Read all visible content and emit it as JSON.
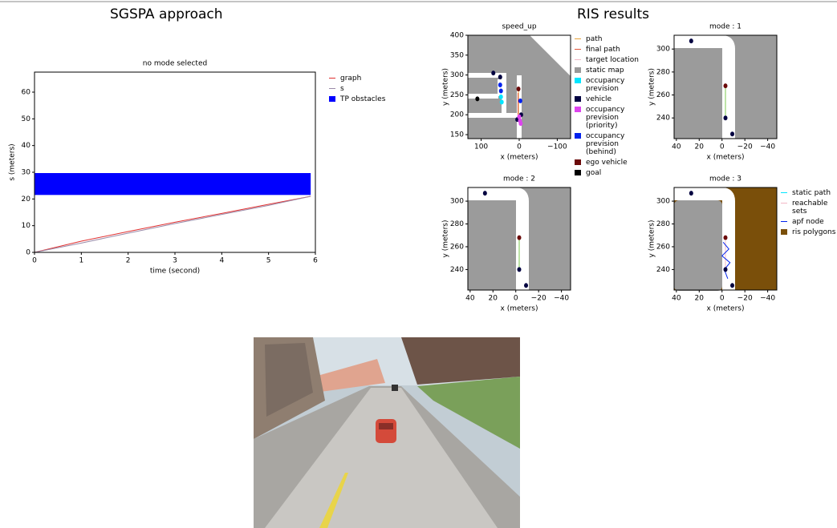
{
  "headings": {
    "left": "SGSPA approach",
    "right": "RIS results"
  },
  "chart_data": [
    {
      "type": "line",
      "title": "no mode selected",
      "xlabel": "time (second)",
      "ylabel": "s (meters)",
      "xlim": [
        0,
        6
      ],
      "ylim": [
        0,
        67.5
      ],
      "xticks": [
        0,
        1,
        2,
        3,
        4,
        5,
        6
      ],
      "yticks": [
        0,
        10,
        20,
        30,
        40,
        50,
        60
      ],
      "background": "#ffffff",
      "series": [
        {
          "name": "graph",
          "color": "#e03030",
          "marker": "line",
          "x": [
            0,
            1,
            2,
            3,
            4,
            5,
            5.9
          ],
          "values": [
            0,
            4.2,
            7.8,
            11.3,
            14.6,
            18,
            21
          ]
        },
        {
          "name": "s",
          "color": "#9a8aa8",
          "marker": "line",
          "x": [
            0,
            1,
            2,
            3,
            4,
            5,
            5.9
          ],
          "values": [
            0,
            3.5,
            7.2,
            10.8,
            14.2,
            17.6,
            21
          ]
        },
        {
          "name": "TP obstacles",
          "color": "#0000ff",
          "marker": "band",
          "x": [
            0,
            5.9
          ],
          "values": [
            21.5,
            29.7
          ]
        }
      ]
    },
    {
      "type": "map",
      "title": "speed_up",
      "xlabel": "x (meters)",
      "ylabel": "y (meters)",
      "xlim": [
        135,
        -135
      ],
      "ylim": [
        140,
        400
      ],
      "xticks": [
        100,
        0,
        {
          "value": -100,
          "label": "−100"
        }
      ],
      "yticks": [
        150,
        200,
        250,
        300,
        350,
        400
      ],
      "background": "#9b9b9b",
      "series": [
        {
          "name": "path",
          "color": "#e8a33a",
          "marker": "line",
          "x": [
            2,
            2
          ],
          "values": [
            190,
            262
          ]
        },
        {
          "name": "final path",
          "color": "#e0553a",
          "marker": "line",
          "x": [
            3,
            3
          ],
          "values": [
            200,
            255
          ]
        },
        {
          "name": "target location",
          "color": "#f2b8c6",
          "marker": "line",
          "x": [
            0
          ],
          "values": [
            265
          ]
        },
        {
          "name": "static map",
          "color": "#999999",
          "marker": "square",
          "x": [],
          "values": []
        },
        {
          "name": "occupancy\n prevision",
          "color": "#00e5ff",
          "marker": "square",
          "x": [
            48,
            46
          ],
          "values": [
            245,
            232
          ]
        },
        {
          "name": "vehicle",
          "color": "#000040",
          "marker": "square",
          "x": [
            68,
            50,
            -5,
            5
          ],
          "values": [
            305,
            295,
            200,
            188
          ]
        },
        {
          "name": "occupancy\n prevision\n(priority)",
          "color": "#dd44ee",
          "marker": "square",
          "x": [
            0,
            -2,
            -4
          ],
          "values": [
            195,
            185,
            178
          ]
        },
        {
          "name": "occupancy\n prevision\n(behind)",
          "color": "#0022ee",
          "marker": "square",
          "x": [
            50,
            48,
            -3
          ],
          "values": [
            275,
            260,
            235
          ]
        },
        {
          "name": "ego vehicle",
          "color": "#6b0a0a",
          "marker": "square",
          "x": [
            2
          ],
          "values": [
            265
          ]
        },
        {
          "name": "goal",
          "color": "#000000",
          "marker": "square",
          "x": [
            110
          ],
          "values": [
            240
          ]
        }
      ]
    },
    {
      "type": "map",
      "title": "mode : 1",
      "xlabel": "x (meters)",
      "ylabel": "y (meters)",
      "xlim": [
        42,
        -48
      ],
      "ylim": [
        222,
        312
      ],
      "xticks": [
        40,
        20,
        0,
        {
          "value": -20,
          "label": "−20"
        },
        {
          "value": -40,
          "label": "−40"
        }
      ],
      "yticks": [
        240,
        260,
        280,
        300
      ],
      "background": "#9b9b9b",
      "series": [
        {
          "color": "#7ec850",
          "marker": "line",
          "x": [
            -3,
            -3
          ],
          "values": [
            266,
            242
          ]
        },
        {
          "color": "#000040",
          "marker": "square",
          "x": [
            27,
            -3,
            -9
          ],
          "values": [
            307,
            240,
            226
          ]
        },
        {
          "color": "#6b0a0a",
          "marker": "square",
          "x": [
            -3
          ],
          "values": [
            268
          ]
        }
      ]
    },
    {
      "type": "map",
      "title": "mode : 2",
      "xlabel": "x (meters)",
      "ylabel": "y (meters)",
      "xlim": [
        42,
        -48
      ],
      "ylim": [
        222,
        312
      ],
      "xticks": [
        40,
        20,
        0,
        {
          "value": -20,
          "label": "−20"
        },
        {
          "value": -40,
          "label": "−40"
        }
      ],
      "yticks": [
        240,
        260,
        280,
        300
      ],
      "background": "#9b9b9b",
      "series": [
        {
          "color": "#7ec850",
          "marker": "line",
          "x": [
            -3,
            -3
          ],
          "values": [
            266,
            242
          ]
        },
        {
          "color": "#000040",
          "marker": "square",
          "x": [
            27,
            -3,
            -9
          ],
          "values": [
            307,
            240,
            226
          ]
        },
        {
          "color": "#6b0a0a",
          "marker": "square",
          "x": [
            -3
          ],
          "values": [
            268
          ]
        }
      ]
    },
    {
      "type": "map",
      "title": "mode : 3",
      "xlabel": "x (meters)",
      "ylabel": "y (meters)",
      "xlim": [
        42,
        -48
      ],
      "ylim": [
        222,
        312
      ],
      "xticks": [
        40,
        20,
        0,
        {
          "value": -20,
          "label": "−20"
        },
        {
          "value": -40,
          "label": "−40"
        }
      ],
      "yticks": [
        240,
        260,
        280,
        300
      ],
      "background": "#7a4f0a",
      "series": [
        {
          "name": "static path",
          "color": "#00e5ff",
          "marker": "line",
          "x": [],
          "values": []
        },
        {
          "name": "reachable sets",
          "color": "#f2b8c6",
          "marker": "line",
          "x": [
            -3,
            -3
          ],
          "values": [
            265,
            242
          ]
        },
        {
          "name": "apf node",
          "color": "#0022ee",
          "marker": "line",
          "x": [
            -1,
            -6,
            0,
            -7,
            -2,
            -5
          ],
          "values": [
            264,
            258,
            252,
            246,
            240,
            232
          ]
        },
        {
          "name": "ris polygons",
          "color": "#7a4f0a",
          "marker": "square",
          "x": [],
          "values": []
        },
        {
          "color": "#000040",
          "marker": "square",
          "x": [
            27,
            -3,
            -9
          ],
          "values": [
            307,
            240,
            226
          ]
        },
        {
          "color": "#6b0a0a",
          "marker": "square",
          "x": [
            -3
          ],
          "values": [
            268
          ]
        }
      ]
    }
  ]
}
